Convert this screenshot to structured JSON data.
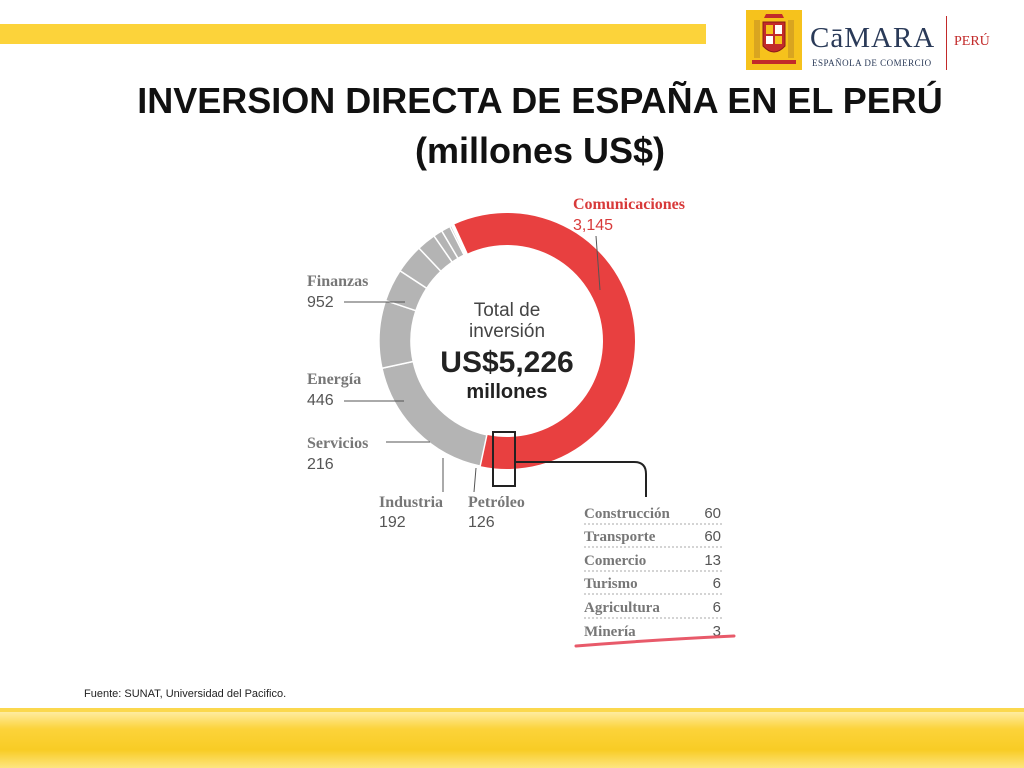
{
  "header": {
    "title_line1": "INVERSION DIRECTA DE ESPAÑA EN EL PERÚ",
    "title_line2": "(millones US$)"
  },
  "logo": {
    "name": "CāMARA",
    "subtitle": "ESPAÑOLA DE COMERCIO",
    "country": "PERÚ"
  },
  "chart_data": {
    "type": "pie",
    "variant": "donut",
    "title": "INVERSION DIRECTA DE ESPAÑA EN EL PERÚ (millones US$)",
    "center": {
      "line1": "Total de",
      "line2": "inversión",
      "total": "US$5,226",
      "unit": "millones"
    },
    "slices": [
      {
        "name": "Comunicaciones",
        "value": 3145,
        "label": "3,145",
        "color": "#e84040"
      },
      {
        "name": "Finanzas",
        "value": 952,
        "label": "952",
        "color": "#b4b4b4"
      },
      {
        "name": "Energía",
        "value": 446,
        "label": "446",
        "color": "#b4b4b4"
      },
      {
        "name": "Servicios",
        "value": 216,
        "label": "216",
        "color": "#b4b4b4"
      },
      {
        "name": "Industria",
        "value": 192,
        "label": "192",
        "color": "#b4b4b4"
      },
      {
        "name": "Petróleo",
        "value": 126,
        "label": "126",
        "color": "#b4b4b4"
      },
      {
        "name": "Construcción",
        "value": 60,
        "label": "60",
        "color": "#b4b4b4"
      },
      {
        "name": "Transporte",
        "value": 60,
        "label": "60",
        "color": "#b4b4b4"
      },
      {
        "name": "Comercio",
        "value": 13,
        "label": "13",
        "color": "#b4b4b4"
      },
      {
        "name": "Turismo",
        "value": 6,
        "label": "6",
        "color": "#b4b4b4"
      },
      {
        "name": "Agricultura",
        "value": 6,
        "label": "6",
        "color": "#b4b4b4"
      },
      {
        "name": "Minería",
        "value": 3,
        "label": "3",
        "color": "#b4b4b4"
      }
    ],
    "detail_table": [
      {
        "name": "Construcción",
        "value": "60"
      },
      {
        "name": "Transporte",
        "value": "60"
      },
      {
        "name": "Comercio",
        "value": "13"
      },
      {
        "name": "Turismo",
        "value": "6"
      },
      {
        "name": "Agricultura",
        "value": "6"
      },
      {
        "name": "Minería",
        "value": "3"
      }
    ]
  },
  "footer": {
    "source": "Fuente: SUNAT, Universidad del Pacifico."
  },
  "colors": {
    "accent_red": "#e84040",
    "slice_gray": "#b4b4b4",
    "band_yellow": "#fcd33a"
  }
}
